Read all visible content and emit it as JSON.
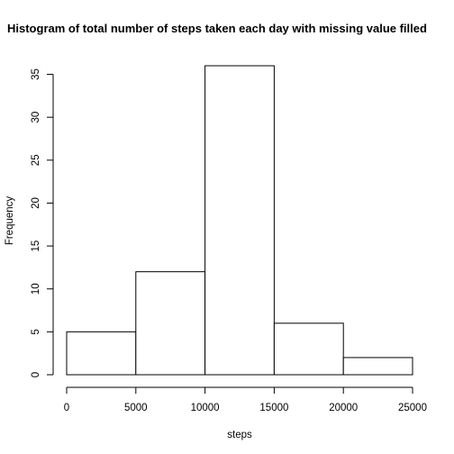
{
  "chart_data": {
    "type": "bar",
    "title": "Histogram of total number of steps taken each day with missing value filled",
    "xlabel": "steps",
    "ylabel": "Frequency",
    "bins": [
      {
        "start": 0,
        "end": 5000,
        "count": 5
      },
      {
        "start": 5000,
        "end": 10000,
        "count": 12
      },
      {
        "start": 10000,
        "end": 15000,
        "count": 36
      },
      {
        "start": 15000,
        "end": 20000,
        "count": 6
      },
      {
        "start": 20000,
        "end": 25000,
        "count": 2
      }
    ],
    "xlim": [
      0,
      25000
    ],
    "ylim": [
      0,
      36
    ],
    "x_ticks": [
      0,
      5000,
      10000,
      15000,
      20000,
      25000
    ],
    "x_tick_labels": [
      "0",
      "5000",
      "10000",
      "15000",
      "20000",
      "25000"
    ],
    "y_ticks": [
      0,
      5,
      10,
      15,
      20,
      25,
      30,
      35
    ],
    "y_tick_labels": [
      "0",
      "5",
      "10",
      "15",
      "20",
      "25",
      "30",
      "35"
    ],
    "grid": false,
    "legend": "none",
    "bar_fill": "#ffffff",
    "bar_stroke": "#000000"
  }
}
